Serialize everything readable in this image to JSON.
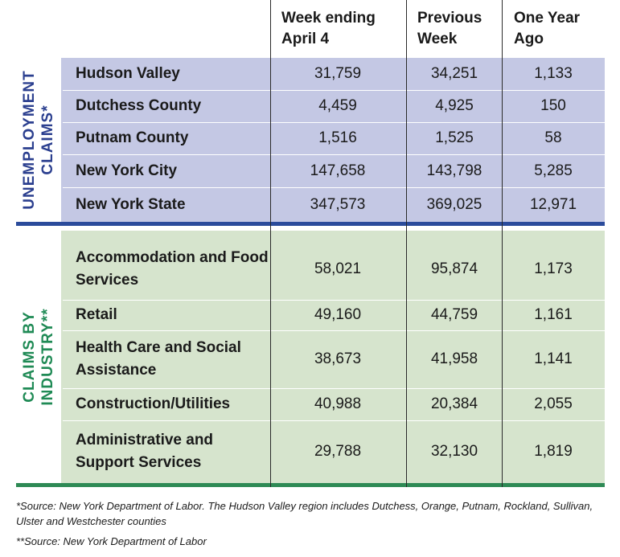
{
  "columns": {
    "week_ending": "Week ending April 4",
    "previous_week": "Previous Week",
    "year_ago": "One Year Ago"
  },
  "sections": {
    "unemployment": {
      "title_line1": "UNEMPLOYMENT",
      "title_line2": "CLAIMS*",
      "rows": [
        {
          "label": "Hudson Valley",
          "week": "31,759",
          "prev": "34,251",
          "year": "1,133"
        },
        {
          "label": "Dutchess County",
          "week": "4,459",
          "prev": "4,925",
          "year": "150"
        },
        {
          "label": "Putnam County",
          "week": "1,516",
          "prev": "1,525",
          "year": "58"
        },
        {
          "label": "New York City",
          "week": "147,658",
          "prev": "143,798",
          "year": "5,285"
        },
        {
          "label": "New York State",
          "week": "347,573",
          "prev": "369,025",
          "year": "12,971"
        }
      ]
    },
    "industry": {
      "title_line1": "CLAIMS BY",
      "title_line2": "INDUSTRY**",
      "rows": [
        {
          "label": "Accommodation and Food Services",
          "week": "58,021",
          "prev": "95,874",
          "year": "1,173"
        },
        {
          "label": "Retail",
          "week": "49,160",
          "prev": "44,759",
          "year": "1,161"
        },
        {
          "label": "Health Care and Social Assistance",
          "week": "38,673",
          "prev": "41,958",
          "year": "1,141"
        },
        {
          "label": "Construction/Utilities",
          "week": "40,988",
          "prev": "20,384",
          "year": "2,055"
        },
        {
          "label": "Administrative and Support Services",
          "week": "29,788",
          "prev": "32,130",
          "year": "1,819"
        }
      ]
    }
  },
  "footnotes": {
    "note1": "*Source: New York Department of Labor. The Hudson Valley region includes Dutchess, Orange, Putnam, Rockland, Sullivan, Ulster and Westchester counties",
    "note2": "**Source: New York Department of Labor"
  },
  "colors": {
    "blue_band": "#c4c8e4",
    "green_band": "#d6e4cd",
    "blue_accent": "#2b4b9b",
    "green_accent": "#2e8a55"
  }
}
